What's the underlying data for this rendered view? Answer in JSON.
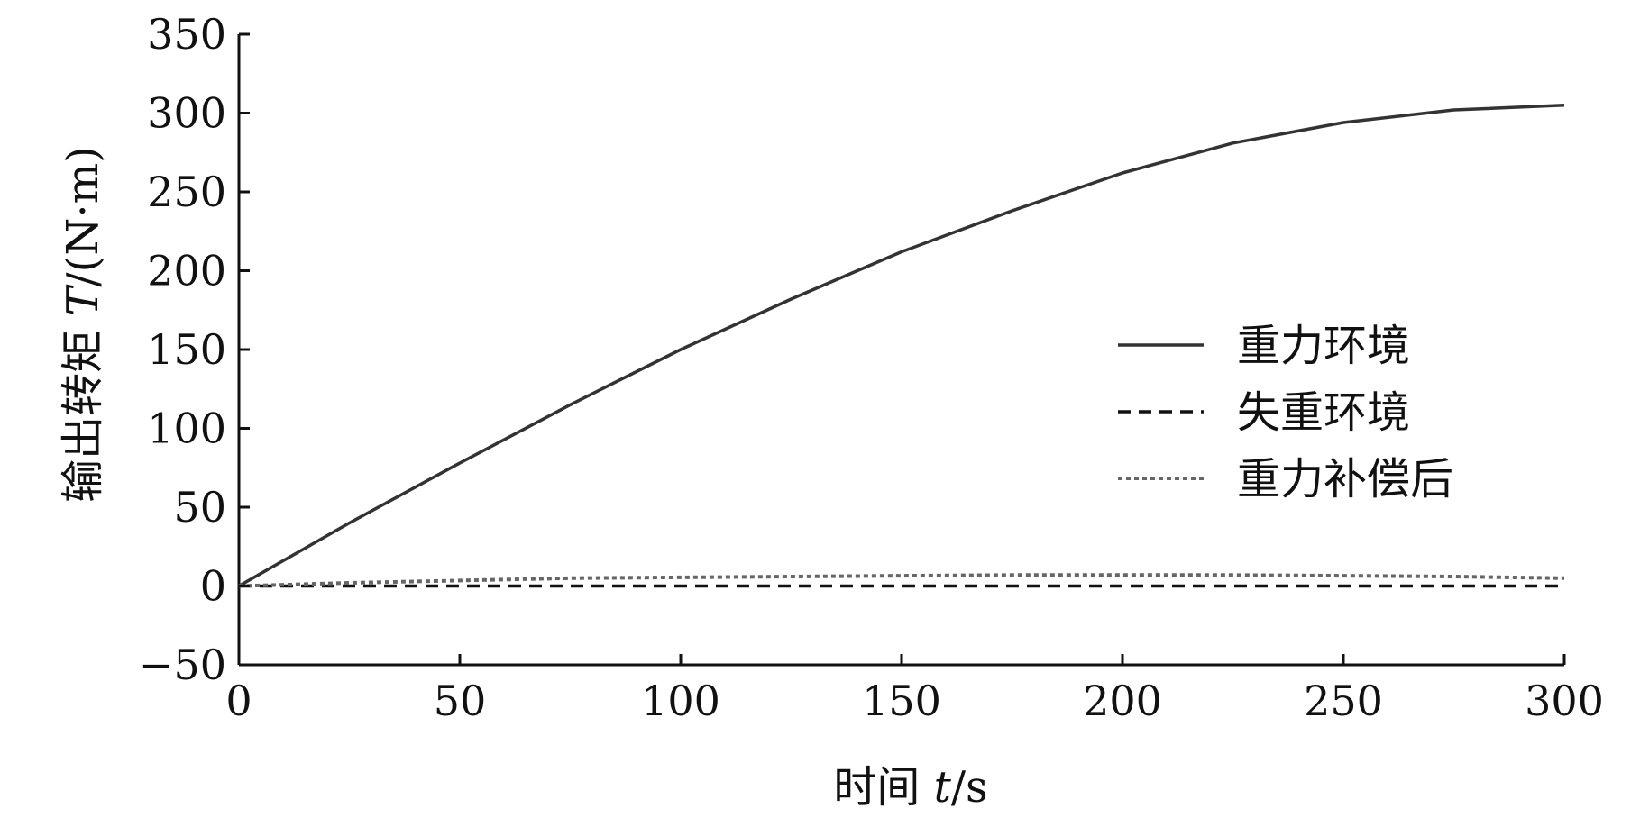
{
  "chart_data": {
    "type": "line",
    "xlabel": {
      "prefix": "时间 ",
      "var": "t",
      "unit": "/s"
    },
    "ylabel": {
      "prefix": "输出转矩 ",
      "var": "T",
      "unit": "/(N·m)"
    },
    "xlim": [
      0,
      300
    ],
    "ylim": [
      -50,
      350
    ],
    "xticks": [
      0,
      50,
      100,
      150,
      200,
      250,
      300
    ],
    "yticks": [
      -50,
      0,
      50,
      100,
      150,
      200,
      250,
      300,
      350
    ],
    "grid": false,
    "legend_position": "center-right",
    "x": [
      0,
      25,
      50,
      75,
      100,
      125,
      150,
      175,
      200,
      225,
      250,
      275,
      300
    ],
    "series": [
      {
        "name": "重力环境",
        "style": "solid",
        "color": "#333333",
        "values": [
          0,
          40,
          78,
          115,
          150,
          182,
          212,
          238,
          262,
          281,
          294,
          302,
          305
        ]
      },
      {
        "name": "失重环境",
        "style": "dashed",
        "color": "#111111",
        "values": [
          0,
          0,
          0,
          0,
          0,
          0,
          0,
          0,
          0,
          0,
          0,
          0,
          0
        ]
      },
      {
        "name": "重力补偿后",
        "style": "dotted",
        "color": "#666666",
        "values": [
          0,
          2,
          3.5,
          5,
          5.5,
          6,
          6.5,
          7,
          7,
          7,
          6.5,
          6,
          5
        ]
      }
    ]
  }
}
